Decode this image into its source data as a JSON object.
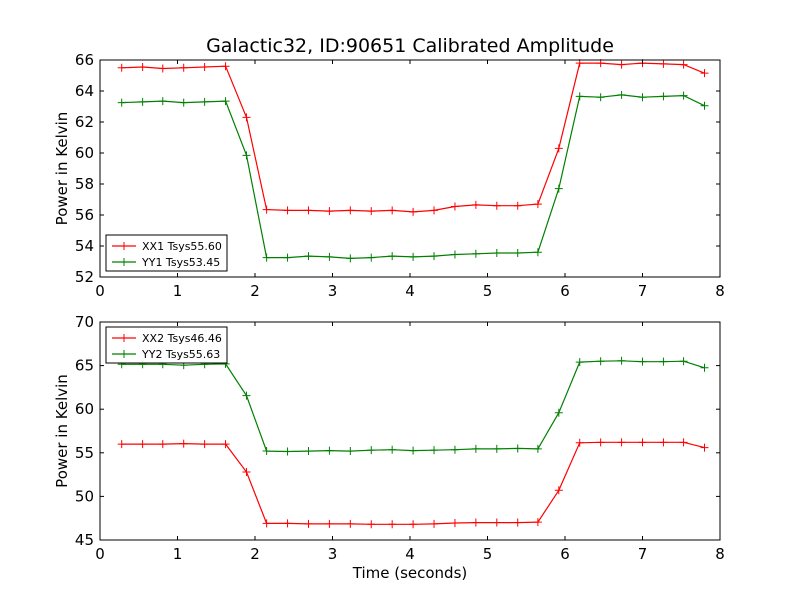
{
  "figure": {
    "title": "Galactic32, ID:90651 Calibrated Amplitude",
    "xlabel": "Time (seconds)"
  },
  "chart_data": [
    {
      "type": "line",
      "title": "Galactic32, ID:90651 Calibrated Amplitude",
      "ylabel": "Power in Kelvin",
      "xlim": [
        0,
        8
      ],
      "ylim": [
        52,
        66
      ],
      "xticks": [
        0,
        1,
        2,
        3,
        4,
        5,
        6,
        7,
        8
      ],
      "yticks": [
        52,
        54,
        56,
        58,
        60,
        62,
        64,
        66
      ],
      "grid": false,
      "legend_position": "lower-left",
      "x": [
        0.28,
        0.55,
        0.81,
        1.08,
        1.35,
        1.62,
        1.89,
        2.15,
        2.42,
        2.69,
        2.96,
        3.23,
        3.5,
        3.77,
        4.04,
        4.31,
        4.58,
        4.85,
        5.12,
        5.39,
        5.65,
        5.92,
        6.19,
        6.46,
        6.73,
        7.0,
        7.27,
        7.53,
        7.8
      ],
      "series": [
        {
          "name": "XX1 Tsys55.60",
          "color": "#ff0000",
          "values": [
            65.5,
            65.55,
            65.45,
            65.5,
            65.55,
            65.6,
            62.3,
            56.35,
            56.3,
            56.3,
            56.25,
            56.3,
            56.25,
            56.3,
            56.2,
            56.3,
            56.55,
            56.65,
            56.6,
            56.6,
            56.7,
            60.3,
            65.8,
            65.8,
            65.7,
            65.8,
            65.75,
            65.7,
            65.15
          ]
        },
        {
          "name": "YY1 Tsys53.45",
          "color": "#008000",
          "values": [
            63.25,
            63.3,
            63.35,
            63.25,
            63.3,
            63.35,
            59.85,
            53.25,
            53.25,
            53.35,
            53.3,
            53.2,
            53.25,
            53.35,
            53.3,
            53.35,
            53.45,
            53.5,
            53.55,
            53.55,
            53.6,
            57.7,
            63.65,
            63.6,
            63.75,
            63.6,
            63.65,
            63.7,
            63.05
          ]
        }
      ]
    },
    {
      "type": "line",
      "ylabel": "Power in Kelvin",
      "xlabel": "Time (seconds)",
      "xlim": [
        0,
        8
      ],
      "ylim": [
        45,
        70
      ],
      "xticks": [
        0,
        1,
        2,
        3,
        4,
        5,
        6,
        7,
        8
      ],
      "yticks": [
        45,
        50,
        55,
        60,
        65,
        70
      ],
      "grid": false,
      "legend_position": "upper-left",
      "x": [
        0.28,
        0.55,
        0.81,
        1.08,
        1.35,
        1.62,
        1.89,
        2.15,
        2.42,
        2.69,
        2.96,
        3.23,
        3.5,
        3.77,
        4.04,
        4.31,
        4.58,
        4.85,
        5.12,
        5.39,
        5.65,
        5.92,
        6.19,
        6.46,
        6.73,
        7.0,
        7.27,
        7.53,
        7.8
      ],
      "series": [
        {
          "name": "XX2 Tsys46.46",
          "color": "#ff0000",
          "values": [
            56.0,
            56.0,
            56.0,
            56.05,
            56.0,
            56.0,
            52.8,
            46.9,
            46.9,
            46.85,
            46.85,
            46.85,
            46.8,
            46.8,
            46.8,
            46.85,
            46.95,
            47.0,
            47.0,
            47.0,
            47.05,
            50.7,
            56.15,
            56.2,
            56.2,
            56.2,
            56.2,
            56.2,
            55.6
          ]
        },
        {
          "name": "YY2 Tsys55.63",
          "color": "#008000",
          "values": [
            65.15,
            65.15,
            65.15,
            65.05,
            65.15,
            65.2,
            61.55,
            55.2,
            55.15,
            55.2,
            55.25,
            55.2,
            55.3,
            55.35,
            55.25,
            55.3,
            55.35,
            55.45,
            55.45,
            55.5,
            55.45,
            59.6,
            65.4,
            65.5,
            65.55,
            65.45,
            65.45,
            65.5,
            64.75
          ]
        }
      ]
    }
  ]
}
